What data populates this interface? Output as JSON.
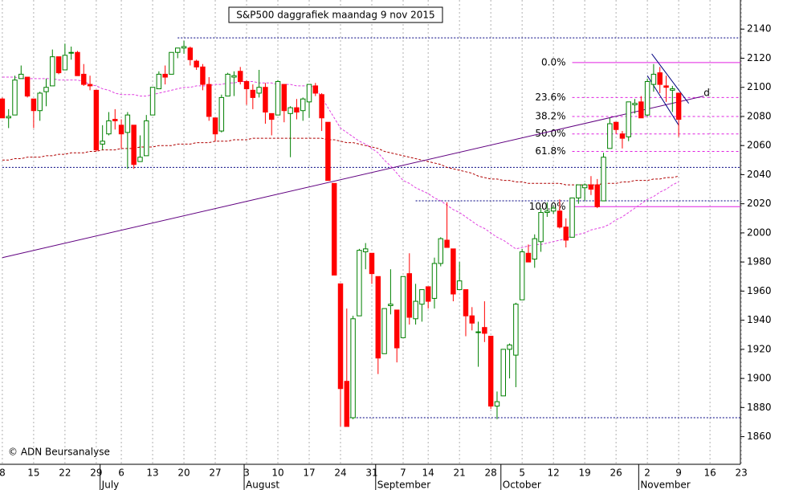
{
  "chart_data": {
    "type": "candlestick",
    "title": "S&P500 daggrafiek maandag 9 nov 2015",
    "credit": "© ADN Beursanalyse",
    "categories": [
      "8",
      null,
      null,
      null,
      null,
      "15",
      null,
      null,
      null,
      null,
      "22",
      null,
      null,
      null,
      null,
      "29",
      null,
      null,
      null,
      "6",
      null,
      null,
      null,
      null,
      "13",
      null,
      null,
      null,
      null,
      "20",
      null,
      null,
      null,
      null,
      "27",
      null,
      null,
      null,
      null,
      "3",
      null,
      null,
      null,
      null,
      "10",
      null,
      null,
      null,
      null,
      "17",
      null,
      null,
      null,
      null,
      "24",
      null,
      null,
      null,
      null,
      "31",
      null,
      null,
      null,
      null,
      "7",
      null,
      null,
      null,
      "14",
      null,
      null,
      null,
      null,
      "21",
      null,
      null,
      null,
      null,
      "28",
      null,
      null,
      null,
      null,
      "5",
      null,
      null,
      null,
      null,
      "12",
      null,
      null,
      null,
      null,
      "19",
      null,
      null,
      null,
      null,
      "26",
      null,
      null,
      null,
      null,
      "2",
      null,
      null,
      null,
      null,
      "9",
      null,
      null,
      null,
      null,
      "16",
      null,
      null,
      null,
      null,
      "23"
    ],
    "months": [
      null,
      null,
      null,
      null,
      null,
      null,
      null,
      null,
      null,
      null,
      null,
      null,
      null,
      null,
      null,
      null,
      "July",
      null,
      null,
      null,
      null,
      null,
      null,
      null,
      null,
      null,
      null,
      null,
      null,
      null,
      null,
      null,
      null,
      null,
      null,
      null,
      null,
      null,
      null,
      "August",
      null,
      null,
      null,
      null,
      null,
      null,
      null,
      null,
      null,
      null,
      null,
      null,
      null,
      null,
      null,
      null,
      null,
      null,
      null,
      null,
      "September",
      null,
      null,
      null,
      null,
      null,
      null,
      null,
      null,
      null,
      null,
      null,
      null,
      null,
      null,
      null,
      null,
      null,
      null,
      null,
      "October",
      null,
      null,
      null,
      null,
      null,
      null,
      null,
      null,
      null,
      null,
      null,
      null,
      null,
      null,
      null,
      null,
      null,
      null,
      null,
      null,
      null,
      "November",
      null,
      null,
      null,
      null,
      null,
      null,
      null,
      null,
      null,
      null,
      null,
      null,
      null,
      null,
      null
    ],
    "open": [
      2092,
      2079,
      2081,
      2106,
      2107,
      2092,
      2084,
      2097,
      2101,
      2121,
      2112,
      2124,
      2124,
      2109,
      2102,
      2098,
      2061,
      2068,
      2078,
      2074,
      2069,
      2074,
      2049,
      2053,
      2081,
      2099,
      2109,
      2109,
      2124,
      2127,
      2127,
      2118,
      2114,
      2102,
      2079,
      2070,
      2094,
      2107,
      2111,
      2104,
      2098,
      2096,
      2100,
      2082,
      2081,
      2102,
      2082,
      2086,
      2084,
      2090,
      2101,
      2095,
      2076,
      2034,
      1965,
      1898,
      1873,
      1943,
      1987,
      1986,
      1970,
      1917,
      1950,
      1947,
      1928,
      1972,
      1941,
      1951,
      1963,
      1955,
      1979,
      1995,
      1989,
      1961,
      1961,
      1943,
      1932,
      1935,
      1929,
      1881,
      1888,
      1920,
      1916,
      1954,
      1986,
      1982,
      1994,
      2014,
      2015,
      2015,
      2004,
      1997,
      2024,
      2031,
      2033,
      2033,
      2022,
      2058,
      2076,
      2068,
      2066,
      2088,
      2090,
      2081,
      2102,
      2110,
      2101,
      2098,
      2096,
      null,
      null,
      null,
      null,
      null,
      null,
      null,
      null,
      null,
      null
    ],
    "high": [
      2093,
      2085,
      2108,
      2115,
      2107,
      2092,
      2097,
      2106,
      2126,
      2121,
      2130,
      2128,
      2125,
      2116,
      2108,
      2098,
      2074,
      2083,
      2085,
      2078,
      2083,
      2074,
      2067,
      2081,
      2100,
      2111,
      2115,
      2124,
      2127,
      2132,
      2128,
      2119,
      2116,
      2107,
      2079,
      2095,
      2110,
      2111,
      2114,
      2105,
      2102,
      2112,
      2103,
      2082,
      2105,
      2102,
      2087,
      2092,
      2093,
      2102,
      2103,
      2096,
      2076,
      2034,
      1965,
      1948,
      1943,
      1989,
      1993,
      1986,
      1970,
      1948,
      1975,
      1947,
      1970,
      1986,
      1965,
      1961,
      1963,
      1983,
      1997,
      2021,
      1989,
      1980,
      1961,
      1949,
      1939,
      1953,
      1929,
      1891,
      1920,
      1924,
      1952,
      1989,
      1992,
      1999,
      2017,
      2021,
      2019,
      2023,
      2010,
      2024,
      2033,
      2034,
      2039,
      2037,
      2055,
      2079,
      2076,
      2070,
      2090,
      2092,
      2094,
      2106,
      2116,
      2114,
      2108,
      2101,
      2096,
      null,
      null,
      null,
      null,
      null,
      null,
      null,
      null,
      null,
      null
    ],
    "low": [
      2079,
      2072,
      2081,
      2106,
      2093,
      2072,
      2077,
      2087,
      2101,
      2109,
      2112,
      2119,
      2108,
      2101,
      2098,
      2056,
      2057,
      2067,
      2071,
      2058,
      2044,
      2044,
      2049,
      2053,
      2081,
      2099,
      2102,
      2109,
      2120,
      2123,
      2115,
      2112,
      2098,
      2077,
      2063,
      2069,
      2094,
      2094,
      2102,
      2088,
      2085,
      2093,
      2075,
      2067,
      2081,
      2076,
      2052,
      2078,
      2077,
      2079,
      2094,
      2070,
      2036,
      1971,
      1867,
      1867,
      1872,
      1943,
      1975,
      1965,
      1903,
      1917,
      1944,
      1911,
      1928,
      1937,
      1937,
      1939,
      1948,
      1948,
      1977,
      1991,
      1953,
      1961,
      1929,
      1933,
      1908,
      1925,
      1879,
      1872,
      1888,
      1900,
      1894,
      1954,
      1980,
      1976,
      1987,
      2011,
      2013,
      2003,
      1990,
      1997,
      2020,
      2022,
      2026,
      2017,
      2022,
      2058,
      2068,
      2058,
      2063,
      2082,
      2079,
      2080,
      2097,
      2096,
      2090,
      2083,
      2066,
      null,
      null,
      null,
      null,
      null,
      null,
      null,
      null,
      null,
      null
    ],
    "close": [
      2079,
      2080,
      2105,
      2109,
      2094,
      2084,
      2096,
      2100,
      2121,
      2110,
      2122,
      2124,
      2108,
      2102,
      2101,
      2057,
      2063,
      2077,
      2077,
      2068,
      2081,
      2047,
      2052,
      2077,
      2100,
      2109,
      2107,
      2124,
      2127,
      2128,
      2119,
      2114,
      2102,
      2080,
      2068,
      2093,
      2109,
      2108,
      2104,
      2099,
      2093,
      2100,
      2083,
      2078,
      2104,
      2084,
      2086,
      2083,
      2092,
      2102,
      2096,
      2079,
      2036,
      1971,
      1893,
      1867,
      1941,
      1988,
      1989,
      1972,
      1914,
      1948,
      1951,
      1921,
      1970,
      1942,
      1953,
      1961,
      1953,
      1979,
      1996,
      1990,
      1958,
      1967,
      1943,
      1938,
      1932,
      1931,
      1881,
      1884,
      1920,
      1923,
      1951,
      1987,
      1980,
      1996,
      2014,
      2015,
      2017,
      2004,
      1995,
      2024,
      2033,
      2033,
      2030,
      2018,
      2052,
      2075,
      2071,
      2065,
      2090,
      2089,
      2079,
      2104,
      2109,
      2102,
      2100,
      2099,
      2078,
      null,
      null,
      null,
      null,
      null,
      null,
      null,
      null,
      null,
      null
    ],
    "up_color": "#008000",
    "down_color": "#ff0000",
    "series": [
      {
        "color": "#e040e0",
        "values": [
          2107,
          2107,
          2107,
          2106,
          2106,
          2106,
          2106,
          2106,
          2106,
          2105,
          2105,
          2105,
          2105,
          2104,
          2102,
          2101,
          2099,
          2098,
          2096,
          2095,
          2095,
          2095,
          2094,
          2094,
          2095,
          2096,
          2097,
          2098,
          2099,
          2100,
          2100,
          2101,
          2101,
          2101,
          2102,
          2102,
          2103,
          2103,
          2104,
          2104,
          2104,
          2103,
          2103,
          2103,
          2102,
          2102,
          2102,
          2101,
          2101,
          2101,
          2100,
          2093,
          2086,
          2079,
          2072,
          2069,
          2066,
          2063,
          2061,
          2058,
          2055,
          2050,
          2046,
          2041,
          2036,
          2034,
          2031,
          2029,
          2027,
          2024,
          2022,
          2019,
          2016,
          2014,
          2011,
          2008,
          2005,
          2003,
          2000,
          1997,
          1995,
          1992,
          1989,
          1990,
          1991,
          1992,
          1992,
          1993,
          1994,
          1995,
          1996,
          1998,
          1999,
          2000,
          2002,
          2003,
          2004,
          2006,
          2009,
          2011,
          2014,
          2017,
          2020,
          2023,
          2025,
          2028,
          2030,
          2033,
          2035,
          null,
          null,
          null,
          null,
          null,
          null,
          null,
          null,
          null,
          null
        ]
      },
      {
        "color": "#b00000",
        "values": [
          2050,
          2050,
          2051,
          2051,
          2052,
          2052,
          2052,
          2053,
          2053,
          2054,
          2054,
          2055,
          2055,
          2055,
          2056,
          2056,
          2057,
          2057,
          2057,
          2058,
          2058,
          2058,
          2059,
          2059,
          2059,
          2060,
          2060,
          2060,
          2061,
          2061,
          2061,
          2062,
          2062,
          2062,
          2063,
          2063,
          2063,
          2064,
          2064,
          2064,
          2065,
          2065,
          2065,
          2065,
          2065,
          2065,
          2065,
          2065,
          2065,
          2065,
          2065,
          2065,
          2064,
          2064,
          2063,
          2062,
          2062,
          2061,
          2060,
          2059,
          2058,
          2056,
          2055,
          2054,
          2053,
          2052,
          2051,
          2050,
          2049,
          2048,
          2047,
          2045,
          2044,
          2043,
          2042,
          2041,
          2039,
          2038,
          2037,
          2037,
          2036,
          2036,
          2035,
          2035,
          2034,
          2034,
          2034,
          2034,
          2034,
          2034,
          2033,
          2033,
          2033,
          2033,
          2033,
          2033,
          2034,
          2034,
          2034,
          2035,
          2035,
          2036,
          2036,
          2036,
          2037,
          2037,
          2038,
          2038,
          2039,
          null,
          null,
          null,
          null,
          null,
          null,
          null,
          null,
          null,
          null
        ]
      }
    ],
    "levels": [
      {
        "value": 2134,
        "from": 28
      },
      {
        "value": 2045,
        "from": 0
      },
      {
        "value": 2022,
        "from": 66
      },
      {
        "value": 1873,
        "from": 55
      }
    ],
    "level_color": "#000080",
    "fib": [
      {
        "label": "0.0%",
        "value": 2117
      },
      {
        "label": "23.6%",
        "value": 2093
      },
      {
        "label": "38.2%",
        "value": 2080
      },
      {
        "label": "50.0%",
        "value": 2068
      },
      {
        "label": "61.8%",
        "value": 2056
      },
      {
        "label": "100.0%",
        "value": 2018
      }
    ],
    "fib_from": 91,
    "fib_color": "#e020e0",
    "trendlines": [
      {
        "x": [
          0,
          112
        ],
        "y": [
          1983,
          2094
        ],
        "color": "#600080"
      },
      {
        "x": [
          103.7,
          109.6
        ],
        "y": [
          2123,
          2089
        ],
        "color": "#000080"
      },
      {
        "x": [
          103,
          108
        ],
        "y": [
          2108,
          2074
        ],
        "color": "#000080"
      }
    ],
    "annotations": [
      {
        "text": "d",
        "x": 112,
        "y": 2096
      }
    ],
    "ylim": [
      1841,
      2160
    ],
    "yticks": [
      1860,
      1880,
      1900,
      1920,
      1940,
      1960,
      1980,
      2000,
      2020,
      2040,
      2060,
      2080,
      2100,
      2120,
      2140
    ],
    "grid": true
  }
}
